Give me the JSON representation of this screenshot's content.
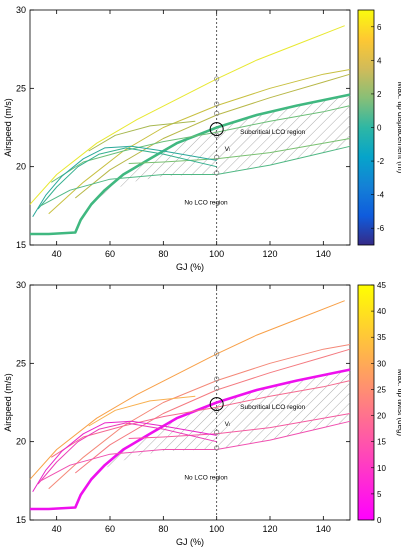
{
  "chart_data": [
    {
      "type": "line",
      "xlabel": "GJ (%)",
      "ylabel": "Airspeed (m/s)",
      "xlim": [
        30,
        150
      ],
      "ylim": [
        15,
        30
      ],
      "xticks": [
        40,
        60,
        80,
        100,
        120,
        140
      ],
      "yticks": [
        15,
        20,
        25,
        30
      ],
      "reference_x": 100,
      "colorbar": {
        "label": "Max. tip displacement (m)",
        "range": [
          -7,
          7
        ],
        "ticks": [
          -6,
          -4,
          -2,
          0,
          2,
          4,
          6
        ],
        "colormap": "parula",
        "colors": [
          "#352a87",
          "#0f5cdd",
          "#1481d6",
          "#06a4ca",
          "#2eb7a4",
          "#87bf77",
          "#d1bb59",
          "#fec832",
          "#f9fb0e"
        ]
      },
      "annotations": [
        "Subcritical LCO region",
        "No LCO region",
        "Vₗ"
      ],
      "series": [
        {
          "color": "#e8e830",
          "x": [
            30,
            40,
            55,
            70,
            85,
            100,
            115,
            130,
            148
          ],
          "y": [
            17.6,
            19.5,
            21.5,
            23.0,
            24.3,
            25.6,
            26.8,
            27.8,
            29.0
          ]
        },
        {
          "color": "#c8c040",
          "x": [
            37,
            50,
            65,
            80,
            100,
            120,
            140,
            150
          ],
          "y": [
            17.0,
            19.0,
            21.0,
            22.5,
            23.9,
            25.0,
            25.9,
            26.2
          ]
        },
        {
          "color": "#b8b848",
          "x": [
            47,
            60,
            80,
            100,
            120,
            140,
            150
          ],
          "y": [
            18.0,
            19.8,
            21.8,
            23.3,
            24.4,
            25.4,
            25.9
          ]
        },
        {
          "color": "#a8b850",
          "x": [
            52,
            62,
            75,
            92
          ],
          "y": [
            21.0,
            22.0,
            22.6,
            22.9
          ]
        },
        {
          "color": "#40b880",
          "x": [
            30,
            34,
            37,
            47,
            49,
            53,
            58,
            65,
            75,
            85,
            100,
            115,
            130,
            150
          ],
          "y": [
            15.7,
            15.7,
            15.7,
            15.8,
            16.6,
            17.6,
            18.5,
            19.5,
            20.5,
            21.5,
            22.5,
            23.3,
            23.9,
            24.6
          ]
        },
        {
          "color": "#6cbf78",
          "x": [
            38,
            50,
            65,
            80,
            100,
            120,
            140,
            150
          ],
          "y": [
            19.0,
            20.3,
            21.0,
            21.6,
            22.2,
            22.9,
            23.5,
            23.9
          ]
        },
        {
          "color": "#78c070",
          "x": [
            67,
            80,
            100,
            120,
            140,
            150
          ],
          "y": [
            20.2,
            20.3,
            20.5,
            20.9,
            21.5,
            21.8
          ]
        },
        {
          "color": "#2aa89a",
          "x": [
            31,
            36,
            42,
            50,
            58,
            68,
            80,
            100
          ],
          "y": [
            16.8,
            18.2,
            19.4,
            20.5,
            21.2,
            21.3,
            21.0,
            20.4
          ]
        },
        {
          "color": "#36b090",
          "x": [
            33,
            40,
            48,
            56,
            66,
            80,
            100
          ],
          "y": [
            17.3,
            18.7,
            20.0,
            20.8,
            21.2,
            20.8,
            20.0
          ]
        },
        {
          "color": "#50b884",
          "x": [
            34,
            45,
            60,
            80,
            100,
            120,
            140,
            150
          ],
          "y": [
            17.5,
            18.5,
            19.2,
            19.5,
            19.5,
            20.1,
            20.9,
            21.3
          ]
        }
      ]
    },
    {
      "type": "line",
      "xlabel": "GJ (%)",
      "ylabel": "Airspeed (m/s)",
      "xlim": [
        30,
        150
      ],
      "ylim": [
        15,
        30
      ],
      "xticks": [
        40,
        60,
        80,
        100,
        120,
        140
      ],
      "yticks": [
        15,
        20,
        25,
        30
      ],
      "reference_x": 100,
      "colorbar": {
        "label": "Max. tip twist (deg)",
        "range": [
          0,
          45
        ],
        "ticks": [
          0,
          5,
          10,
          15,
          20,
          25,
          30,
          35,
          40,
          45
        ],
        "colormap": "spring",
        "colors": [
          "#ff00ff",
          "#ff40bf",
          "#ff8080",
          "#ffbf40",
          "#ffff00"
        ]
      },
      "annotations": [
        "Subcritical LCO region",
        "No LCO region",
        "Vₗ"
      ],
      "series": [
        {
          "color": "#f8a048",
          "x": [
            30,
            40,
            55,
            70,
            85,
            100,
            115,
            130,
            148
          ],
          "y": [
            17.6,
            19.5,
            21.5,
            23.0,
            24.3,
            25.6,
            26.8,
            27.8,
            29.0
          ]
        },
        {
          "color": "#f48878",
          "x": [
            37,
            50,
            65,
            80,
            100,
            120,
            140,
            150
          ],
          "y": [
            17.0,
            19.0,
            21.0,
            22.5,
            23.9,
            25.0,
            25.9,
            26.2
          ]
        },
        {
          "color": "#f47a80",
          "x": [
            47,
            60,
            80,
            100,
            120,
            140,
            150
          ],
          "y": [
            18.0,
            19.8,
            21.8,
            23.3,
            24.4,
            25.4,
            25.9
          ]
        },
        {
          "color": "#f8b050",
          "x": [
            52,
            62,
            75,
            92
          ],
          "y": [
            21.0,
            22.0,
            22.6,
            22.9
          ]
        },
        {
          "color": "#ee10ee",
          "x": [
            30,
            34,
            37,
            47,
            49,
            53,
            58,
            65,
            75,
            85,
            100,
            115,
            130,
            150
          ],
          "y": [
            15.7,
            15.7,
            15.7,
            15.8,
            16.6,
            17.6,
            18.5,
            19.5,
            20.5,
            21.5,
            22.5,
            23.3,
            23.9,
            24.6
          ]
        },
        {
          "color": "#f46a90",
          "x": [
            38,
            50,
            65,
            80,
            100,
            120,
            140,
            150
          ],
          "y": [
            19.0,
            20.3,
            21.0,
            21.6,
            22.2,
            22.9,
            23.5,
            23.9
          ]
        },
        {
          "color": "#f45aa0",
          "x": [
            67,
            80,
            100,
            120,
            140,
            150
          ],
          "y": [
            20.2,
            20.3,
            20.5,
            20.9,
            21.5,
            21.8
          ]
        },
        {
          "color": "#e824c8",
          "x": [
            31,
            36,
            42,
            50,
            58,
            68,
            80,
            100
          ],
          "y": [
            16.8,
            18.2,
            19.4,
            20.5,
            21.2,
            21.3,
            21.0,
            20.4
          ]
        },
        {
          "color": "#ec3cb8",
          "x": [
            33,
            40,
            48,
            56,
            66,
            80,
            100
          ],
          "y": [
            17.3,
            18.7,
            20.0,
            20.8,
            21.2,
            20.8,
            20.0
          ]
        },
        {
          "color": "#f050b0",
          "x": [
            34,
            45,
            60,
            80,
            100,
            120,
            140,
            150
          ],
          "y": [
            17.5,
            18.5,
            19.2,
            19.5,
            19.5,
            20.1,
            20.9,
            21.3
          ]
        }
      ]
    }
  ]
}
